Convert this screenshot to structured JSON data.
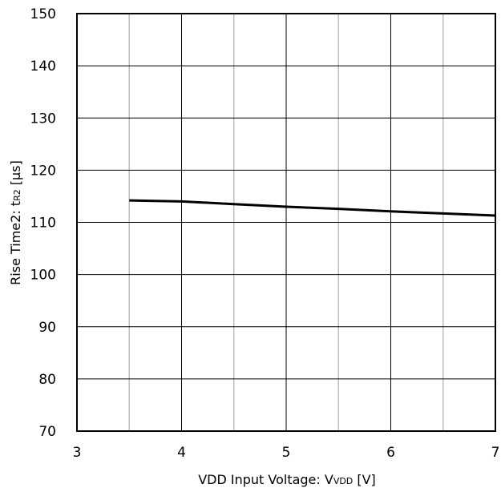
{
  "chart_data": {
    "type": "line",
    "xlabel": {
      "main": "VDD Input Voltage: V",
      "sub": "VDD",
      "unit": " [V]"
    },
    "ylabel": {
      "main": "Rise Time2: t",
      "sub": "R2",
      "unit": " [µs]"
    },
    "xlim": [
      3,
      7
    ],
    "ylim": [
      70,
      150
    ],
    "x_ticks": [
      3,
      4,
      5,
      6,
      7
    ],
    "y_ticks": [
      70,
      80,
      90,
      100,
      110,
      120,
      130,
      140,
      150
    ],
    "x_minor_ticks": [
      3.5,
      4.5,
      5.5,
      6.5
    ],
    "grid": true,
    "series": [
      {
        "x": [
          3.5,
          4.0,
          4.5,
          5.0,
          5.5,
          6.0,
          6.5,
          7.0
        ],
        "values": [
          114.2,
          114.0,
          113.5,
          113.0,
          112.6,
          112.1,
          111.7,
          111.3
        ],
        "color": "#000000"
      }
    ]
  }
}
